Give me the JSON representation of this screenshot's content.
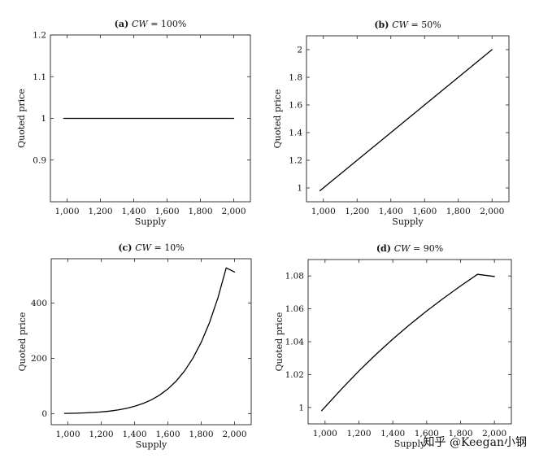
{
  "chart_data": [
    {
      "type": "line",
      "title_prefix": "(a)",
      "title_var": "CW",
      "title_value": " = 100%",
      "xlabel": "Supply",
      "ylabel": "Quoted price",
      "xlim": [
        900,
        2100
      ],
      "ylim": [
        0.8,
        1.2
      ],
      "xticks": [
        1000,
        1200,
        1400,
        1600,
        1800,
        2000
      ],
      "xtick_labels": [
        "1,000",
        "1,200",
        "1,400",
        "1,600",
        "1,800",
        "2,000"
      ],
      "yticks": [
        0.9,
        1,
        1.1,
        1.2
      ],
      "ytick_labels": [
        "0.9",
        "1",
        "1.1",
        "1.2"
      ],
      "series": [
        {
          "x": [
            980,
            1200,
            1400,
            1600,
            1800,
            2000
          ],
          "y": [
            1,
            1,
            1,
            1,
            1,
            1
          ]
        }
      ]
    },
    {
      "type": "line",
      "title_prefix": "(b)",
      "title_var": "CW",
      "title_value": " = 50%",
      "xlabel": "Supply",
      "ylabel": "Quoted price",
      "xlim": [
        900,
        2100
      ],
      "ylim": [
        0.9,
        2.1
      ],
      "xticks": [
        1000,
        1200,
        1400,
        1600,
        1800,
        2000
      ],
      "xtick_labels": [
        "1,000",
        "1,200",
        "1,400",
        "1,600",
        "1,800",
        "2,000"
      ],
      "yticks": [
        1,
        1.2,
        1.4,
        1.6,
        1.8,
        2
      ],
      "ytick_labels": [
        "1",
        "1.2",
        "1.4",
        "1.6",
        "1.8",
        "2"
      ],
      "series": [
        {
          "x": [
            980,
            1100,
            1200,
            1300,
            1400,
            1500,
            1600,
            1700,
            1800,
            1900,
            2000
          ],
          "y": [
            0.98,
            1.1,
            1.2,
            1.3,
            1.4,
            1.5,
            1.6,
            1.7,
            1.8,
            1.9,
            2.0
          ]
        }
      ]
    },
    {
      "type": "line",
      "title_prefix": "(c)",
      "title_var": "CW",
      "title_value": " = 10%",
      "xlabel": "Supply",
      "ylabel": "Quoted price",
      "xlim": [
        900,
        2100
      ],
      "ylim": [
        -40,
        560
      ],
      "xticks": [
        1000,
        1200,
        1400,
        1600,
        1800,
        2000
      ],
      "xtick_labels": [
        "1,000",
        "1,200",
        "1,400",
        "1,600",
        "1,800",
        "2,000"
      ],
      "yticks": [
        0,
        200,
        400
      ],
      "ytick_labels": [
        "0",
        "200",
        "400"
      ],
      "series": [
        {
          "x": [
            980,
            1050,
            1100,
            1150,
            1200,
            1250,
            1300,
            1350,
            1400,
            1450,
            1500,
            1550,
            1600,
            1650,
            1700,
            1750,
            1800,
            1850,
            1900,
            1950,
            2000
          ],
          "y": [
            0.8,
            1.6,
            2.6,
            4.1,
            6.2,
            9.1,
            13.3,
            18.9,
            26.4,
            36.4,
            49.6,
            66.8,
            89.2,
            117.8,
            154.3,
            200.3,
            257.9,
            329.5,
            418,
            526.7,
            512
          ]
        }
      ]
    },
    {
      "type": "line",
      "title_prefix": "(d)",
      "title_var": "CW",
      "title_value": " = 90%",
      "xlabel": "Supply",
      "ylabel": "Quoted price",
      "xlim": [
        900,
        2100
      ],
      "ylim": [
        0.99,
        1.09
      ],
      "xticks": [
        1000,
        1200,
        1400,
        1600,
        1800,
        2000
      ],
      "xtick_labels": [
        "1,000",
        "1,200",
        "1,400",
        "1,600",
        "1,800",
        "2,000"
      ],
      "yticks": [
        1,
        1.02,
        1.04,
        1.06,
        1.08
      ],
      "ytick_labels": [
        "1",
        "1.02",
        "1.04",
        "1.06",
        "1.08"
      ],
      "series": [
        {
          "x": [
            980,
            1100,
            1200,
            1300,
            1400,
            1500,
            1600,
            1700,
            1800,
            1900,
            2000
          ],
          "y": [
            0.998,
            1.0115,
            1.0222,
            1.0322,
            1.0416,
            1.0504,
            1.0587,
            1.0665,
            1.0739,
            1.081,
            1.0797
          ]
        }
      ]
    }
  ],
  "watermark": "知乎 @Keegan小钢"
}
